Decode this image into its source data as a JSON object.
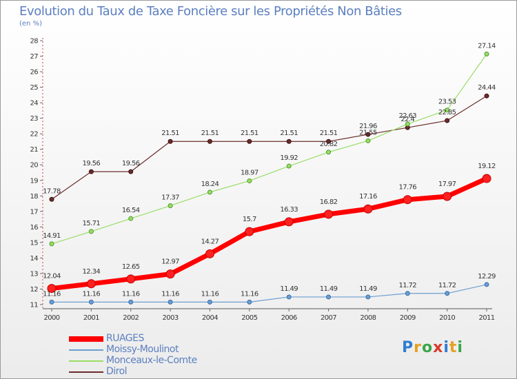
{
  "title": "Evolution du Taux de Taxe Foncière sur les Propriétés Non Bâties",
  "unit": "(en %)",
  "logo": "Proxiti",
  "chart_data": {
    "type": "line",
    "x": [
      "2000",
      "2001",
      "2002",
      "2003",
      "2004",
      "2005",
      "2006",
      "2007",
      "2008",
      "2009",
      "2010",
      "2011"
    ],
    "ylim": [
      11,
      28
    ],
    "yticks": [
      11,
      12,
      13,
      14,
      15,
      16,
      17,
      18,
      19,
      20,
      21,
      22,
      23,
      24,
      25,
      26,
      27,
      28
    ],
    "grid": false,
    "legend": "bottom-left",
    "series": [
      {
        "name": "RUAGES",
        "color": "#ff0000",
        "labels": [
          "12.04",
          "12.34",
          "12.65",
          "12.97",
          "14.27",
          "15.7",
          "16.33",
          "16.82",
          "17.16",
          "17.76",
          "17.97",
          "19.12"
        ],
        "values": [
          12.04,
          12.34,
          12.65,
          12.97,
          14.27,
          15.7,
          16.33,
          16.82,
          17.16,
          17.76,
          17.97,
          19.12
        ]
      },
      {
        "name": "Moissy-Moulinot",
        "color": "#6b9ed0",
        "labels": [
          "11.16",
          "11.16",
          "11.16",
          "11.16",
          "11.16",
          "11.16",
          "11.49",
          "11.49",
          "11.49",
          "11.72",
          "11.72",
          "12.29"
        ],
        "values": [
          11.16,
          11.16,
          11.16,
          11.16,
          11.16,
          11.16,
          11.49,
          11.49,
          11.49,
          11.72,
          11.72,
          12.29
        ]
      },
      {
        "name": "Monceaux-le-Comte",
        "color": "#99dd66",
        "labels": [
          "14.91",
          "15.71",
          "16.54",
          "17.37",
          "18.24",
          "18.97",
          "19.92",
          "20.82",
          "21.55",
          "22.63",
          "23.53",
          "27.14"
        ],
        "values": [
          14.91,
          15.71,
          16.54,
          17.37,
          18.24,
          18.97,
          19.92,
          20.82,
          21.55,
          22.63,
          23.53,
          27.14
        ]
      },
      {
        "name": "Dirol",
        "color": "#6b2c2c",
        "labels": [
          "17.78",
          "19.56",
          "19.56",
          "21.51",
          "21.51",
          "21.51",
          "21.51",
          "21.51",
          "21.96",
          "22.4",
          "22.85",
          "24.44"
        ],
        "values": [
          17.78,
          19.56,
          19.56,
          21.51,
          21.51,
          21.51,
          21.51,
          21.51,
          21.96,
          22.4,
          22.85,
          24.44
        ]
      }
    ]
  }
}
